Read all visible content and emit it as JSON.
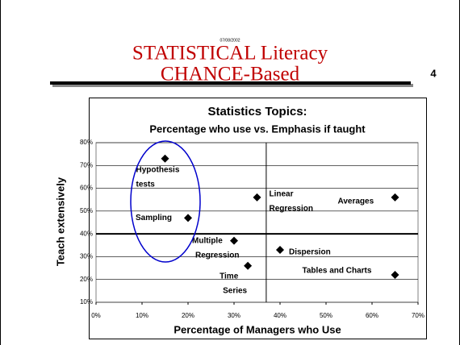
{
  "slide": {
    "date": "07/08/2002",
    "title_line1": "STATISTICAL Literacy",
    "title_line2": "CHANCE-Based",
    "page_number": "4"
  },
  "chart_data": {
    "type": "scatter",
    "title": "Statistics Topics:",
    "subtitle": "Percentage who use vs. Emphasis if taught",
    "xlabel": "Percentage of Managers who Use",
    "ylabel": "Teach extensively",
    "labels": [
      [
        "Hypothesis",
        "tests"
      ],
      [
        "Sampling"
      ],
      [
        "Linear",
        "Regression"
      ],
      [
        "Averages"
      ],
      [
        "Multiple",
        "Regression"
      ],
      [
        "Dispersion"
      ],
      [
        "Time",
        "Series"
      ],
      [
        "Tables and Charts"
      ]
    ],
    "x": [
      15,
      20,
      35,
      65,
      30,
      40,
      33,
      65
    ],
    "y": [
      73,
      47,
      56,
      56,
      37,
      33,
      26,
      22
    ],
    "color": "#000000",
    "xlim": [
      0,
      70
    ],
    "ylim": [
      10,
      80
    ],
    "xticks": [
      {
        "value": 0,
        "label": "0%"
      },
      {
        "value": 10,
        "label": "10%"
      },
      {
        "value": 20,
        "label": "20%"
      },
      {
        "value": 30,
        "label": "30%"
      },
      {
        "value": 40,
        "label": "40%"
      },
      {
        "value": 50,
        "label": "50%"
      },
      {
        "value": 60,
        "label": "60%"
      },
      {
        "value": 70,
        "label": "70%"
      }
    ],
    "yticks": [
      {
        "value": 10,
        "label": "10%"
      },
      {
        "value": 20,
        "label": "20%"
      },
      {
        "value": 30,
        "label": "30%"
      },
      {
        "value": 40,
        "label": "40%"
      },
      {
        "value": 50,
        "label": "50%"
      },
      {
        "value": 60,
        "label": "60%"
      },
      {
        "value": 70,
        "label": "70%"
      },
      {
        "value": 80,
        "label": "80%"
      }
    ],
    "grid": true,
    "xref": 37,
    "yref": 40
  }
}
